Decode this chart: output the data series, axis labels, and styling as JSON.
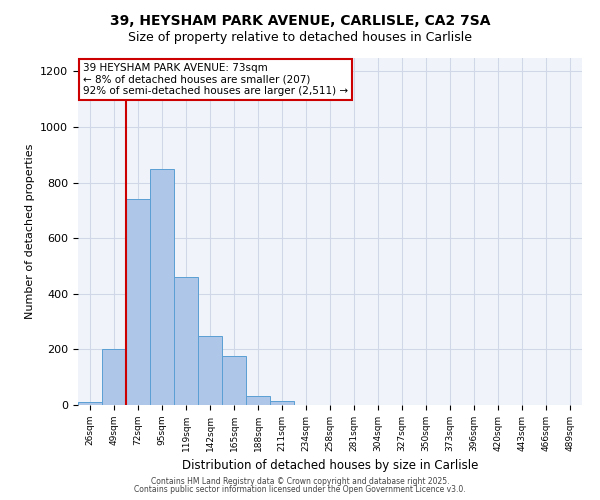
{
  "title_line1": "39, HEYSHAM PARK AVENUE, CARLISLE, CA2 7SA",
  "title_line2": "Size of property relative to detached houses in Carlisle",
  "xlabel": "Distribution of detached houses by size in Carlisle",
  "ylabel": "Number of detached properties",
  "bin_labels": [
    "26sqm",
    "49sqm",
    "72sqm",
    "95sqm",
    "119sqm",
    "142sqm",
    "165sqm",
    "188sqm",
    "211sqm",
    "234sqm",
    "258sqm",
    "281sqm",
    "304sqm",
    "327sqm",
    "350sqm",
    "373sqm",
    "396sqm",
    "420sqm",
    "443sqm",
    "466sqm",
    "489sqm"
  ],
  "bar_values": [
    10,
    200,
    740,
    850,
    460,
    248,
    178,
    32,
    14,
    0,
    0,
    0,
    0,
    0,
    0,
    0,
    0,
    0,
    0,
    0,
    0
  ],
  "bar_color": "#aec6e8",
  "bar_edgecolor": "#5a9fd4",
  "vline_x_index": 2,
  "vline_color": "#cc0000",
  "annotation_title": "39 HEYSHAM PARK AVENUE: 73sqm",
  "annotation_line2": "← 8% of detached houses are smaller (207)",
  "annotation_line3": "92% of semi-detached houses are larger (2,511) →",
  "annotation_box_edgecolor": "#cc0000",
  "annotation_box_facecolor": "#ffffff",
  "ylim": [
    0,
    1250
  ],
  "yticks": [
    0,
    200,
    400,
    600,
    800,
    1000,
    1200
  ],
  "grid_color": "#d0d8e8",
  "bg_color": "#f0f4fa",
  "footer1": "Contains HM Land Registry data © Crown copyright and database right 2025.",
  "footer2": "Contains public sector information licensed under the Open Government Licence v3.0."
}
